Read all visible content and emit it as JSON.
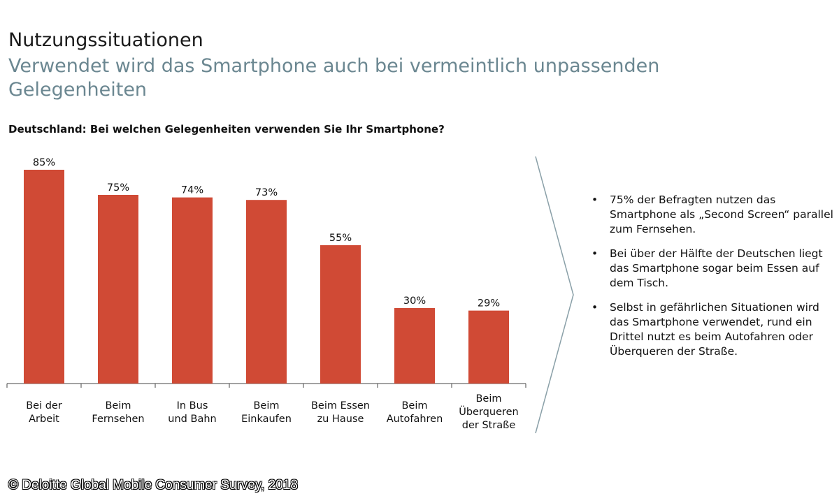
{
  "header": {
    "title": "Nutzungssituationen",
    "subtitle": "Verwendet wird das Smartphone auch bei vermeintlich unpassenden Gelegenheiten"
  },
  "chart_data": {
    "type": "bar",
    "title": "Deutschland: Bei welchen Gelegenheiten verwenden Sie Ihr Smartphone?",
    "categories": [
      [
        "Bei der",
        "Arbeit"
      ],
      [
        "Beim",
        "Fernsehen"
      ],
      [
        "In Bus",
        "und Bahn"
      ],
      [
        "Beim",
        "Einkaufen"
      ],
      [
        "Beim Essen",
        "zu Hause"
      ],
      [
        "Beim",
        "Autofahren"
      ],
      [
        "Beim",
        "Überqueren",
        "der Straße"
      ]
    ],
    "values": [
      85,
      75,
      74,
      73,
      55,
      30,
      29
    ],
    "value_labels": [
      "85%",
      "75%",
      "74%",
      "73%",
      "55%",
      "30%",
      "29%"
    ],
    "unit": "%",
    "ylim": [
      0,
      100
    ],
    "bar_color": "#d04a35",
    "grid": false,
    "xlabel": "",
    "ylabel": ""
  },
  "notes": [
    "75% der Befragten nutzen das Smartphone als „Second Screen“ parallel zum Fernsehen.",
    "Bei über der Hälfte der Deutschen liegt das Smartphone sogar beim Essen auf dem Tisch.",
    "Selbst in gefährlichen Situationen wird das Smartphone verwendet, rund ein Drittel nutzt es beim Autofahren oder Überqueren der Straße."
  ],
  "source": "© Deloitte Global Mobile Consumer Survey, 2018"
}
